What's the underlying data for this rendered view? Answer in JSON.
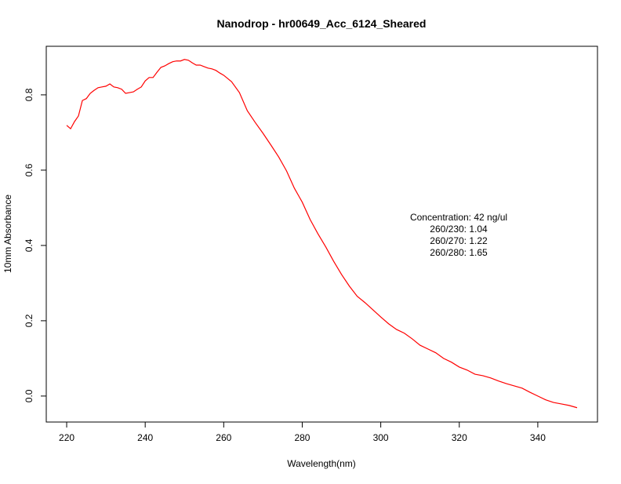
{
  "chart_data": {
    "type": "line",
    "title": "Nanodrop - hr00649_Acc_6124_Sheared",
    "xlabel": "Wavelength(nm)",
    "ylabel": "10mm Absorbance",
    "annotations": [
      "Concentration: 42 ng/ul",
      "260/230: 1.04",
      "260/270: 1.22",
      "260/280: 1.65"
    ],
    "x": [
      220,
      221,
      222,
      223,
      224,
      225,
      226,
      227,
      228,
      229,
      230,
      231,
      232,
      233,
      234,
      235,
      236,
      237,
      238,
      239,
      240,
      241,
      242,
      243,
      244,
      245,
      246,
      247,
      248,
      249,
      250,
      251,
      252,
      253,
      254,
      255,
      256,
      257,
      258,
      259,
      260,
      262,
      264,
      266,
      268,
      270,
      272,
      274,
      276,
      278,
      280,
      282,
      284,
      286,
      288,
      290,
      292,
      294,
      296,
      298,
      300,
      302,
      304,
      306,
      308,
      310,
      312,
      314,
      316,
      318,
      320,
      322,
      324,
      326,
      328,
      330,
      332,
      334,
      336,
      338,
      340,
      342,
      344,
      346,
      348,
      350
    ],
    "series": [
      {
        "color": "#ff0000",
        "values": [
          0.719,
          0.71,
          0.729,
          0.744,
          0.785,
          0.79,
          0.804,
          0.812,
          0.819,
          0.821,
          0.823,
          0.829,
          0.821,
          0.819,
          0.815,
          0.804,
          0.806,
          0.808,
          0.815,
          0.821,
          0.837,
          0.846,
          0.846,
          0.86,
          0.873,
          0.877,
          0.883,
          0.888,
          0.89,
          0.89,
          0.894,
          0.892,
          0.885,
          0.879,
          0.879,
          0.875,
          0.871,
          0.869,
          0.865,
          0.858,
          0.852,
          0.835,
          0.806,
          0.758,
          0.727,
          0.698,
          0.667,
          0.635,
          0.598,
          0.552,
          0.515,
          0.469,
          0.431,
          0.396,
          0.358,
          0.323,
          0.292,
          0.265,
          0.248,
          0.229,
          0.21,
          0.192,
          0.177,
          0.167,
          0.152,
          0.135,
          0.125,
          0.115,
          0.1,
          0.09,
          0.077,
          0.069,
          0.058,
          0.054,
          0.048,
          0.04,
          0.033,
          0.027,
          0.021,
          0.01,
          0.0,
          -0.01,
          -0.017,
          -0.021,
          -0.025,
          -0.031
        ]
      }
    ],
    "xlim": [
      214.8,
      355.2
    ],
    "xticks": [
      220,
      240,
      260,
      280,
      300,
      320,
      340
    ],
    "ylim": [
      -0.069,
      0.929
    ],
    "yticks": [
      {
        "value": 0,
        "label": "0.0"
      },
      0.2,
      0.4,
      0.6,
      0.8
    ]
  }
}
